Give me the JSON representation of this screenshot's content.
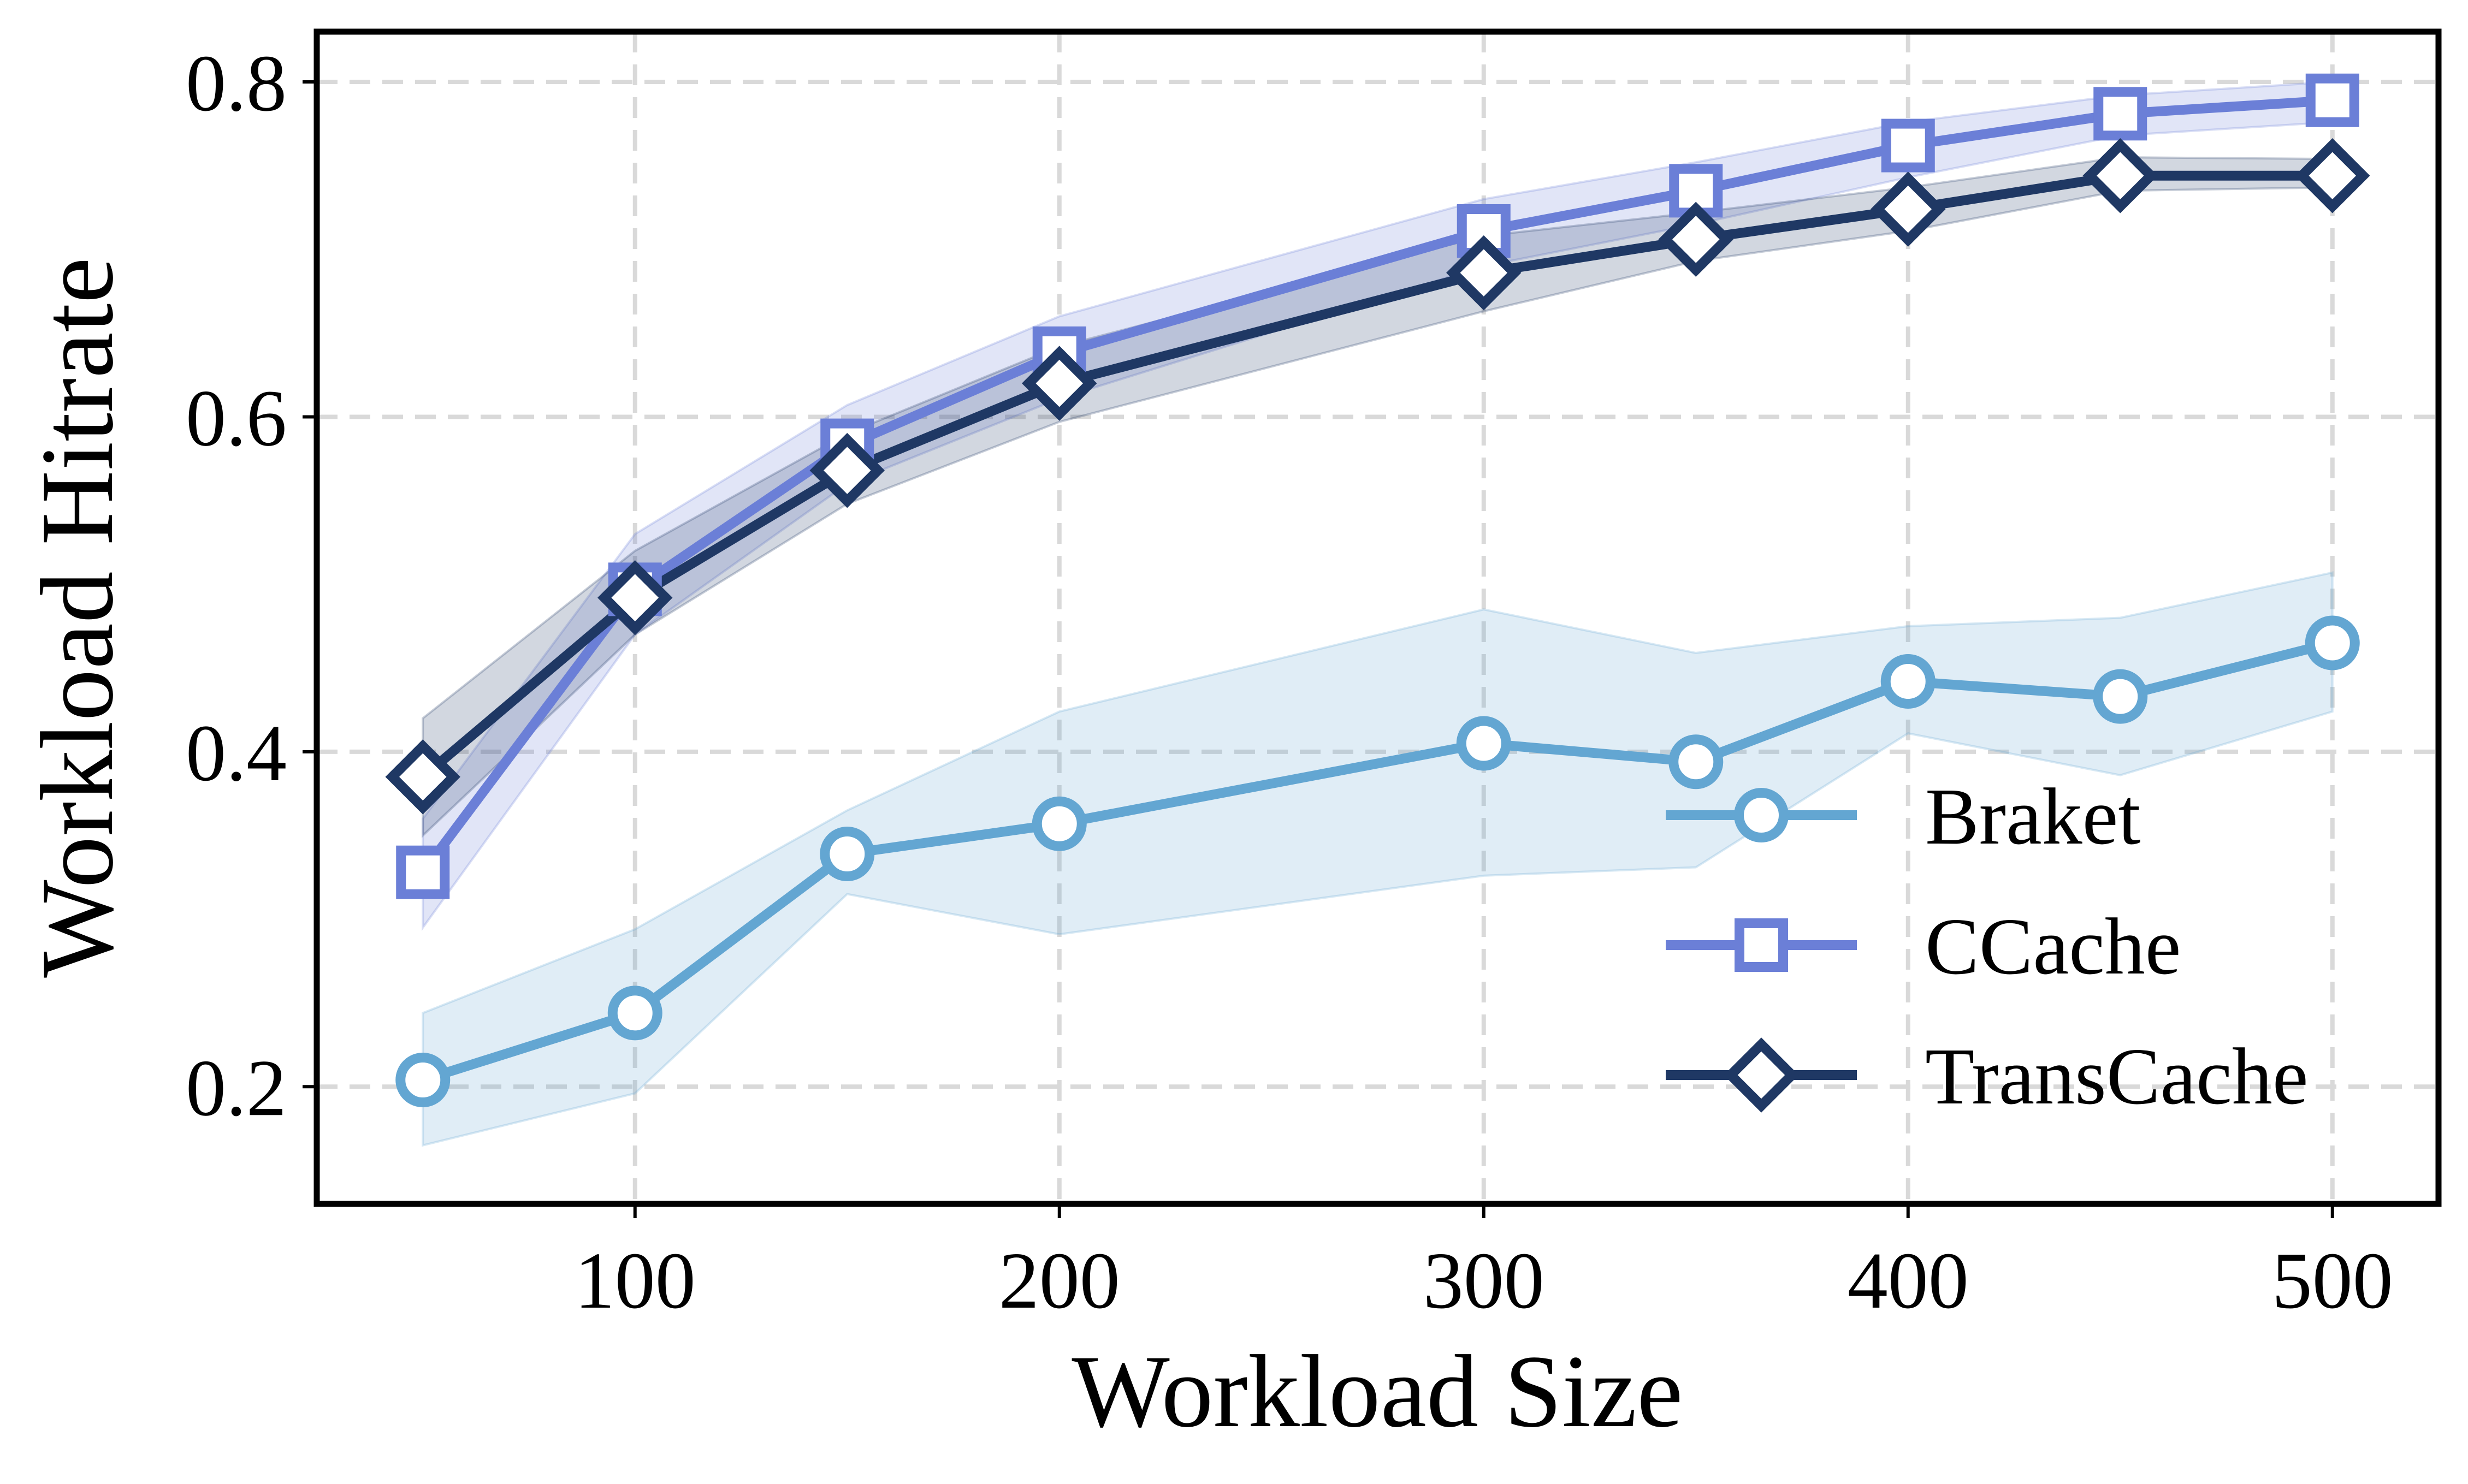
{
  "chart_data": {
    "type": "line",
    "xlabel": "Workload Size",
    "ylabel": "Workload Hitrate",
    "x": [
      50,
      100,
      150,
      200,
      300,
      350,
      400,
      450,
      500
    ],
    "xlim": [
      25,
      525
    ],
    "ylim": [
      0.13,
      0.83
    ],
    "xticks": [
      100,
      200,
      300,
      400,
      500
    ],
    "xtick_labels": [
      "100",
      "200",
      "300",
      "400",
      "500"
    ],
    "yticks": [
      0.2,
      0.4,
      0.6,
      0.8
    ],
    "ytick_labels": [
      "0.2",
      "0.4",
      "0.6",
      "0.8"
    ],
    "grid": true,
    "legend_position": "lower-right",
    "series": [
      {
        "name": "Braket",
        "marker": "circle",
        "color": "#63a6d2",
        "values": [
          0.204,
          0.244,
          0.339,
          0.357,
          0.405,
          0.394,
          0.442,
          0.433,
          0.465
        ],
        "lower": [
          0.165,
          0.196,
          0.315,
          0.291,
          0.326,
          0.331,
          0.411,
          0.386,
          0.424
        ],
        "upper": [
          0.244,
          0.294,
          0.365,
          0.424,
          0.485,
          0.459,
          0.475,
          0.48,
          0.507
        ]
      },
      {
        "name": "CCache",
        "marker": "square",
        "color": "#6b7fd7",
        "values": [
          0.328,
          0.497,
          0.583,
          0.638,
          0.711,
          0.735,
          0.762,
          0.781,
          0.789
        ],
        "lower": [
          0.295,
          0.47,
          0.56,
          0.611,
          0.69,
          0.715,
          0.743,
          0.768,
          0.776
        ],
        "upper": [
          0.36,
          0.53,
          0.607,
          0.66,
          0.73,
          0.752,
          0.776,
          0.792,
          0.8
        ]
      },
      {
        "name": "TransCache",
        "marker": "diamond",
        "color": "#1f3864",
        "values": [
          0.385,
          0.492,
          0.568,
          0.62,
          0.686,
          0.706,
          0.724,
          0.744,
          0.744
        ],
        "lower": [
          0.35,
          0.47,
          0.548,
          0.597,
          0.663,
          0.693,
          0.711,
          0.735,
          0.737
        ],
        "upper": [
          0.42,
          0.52,
          0.59,
          0.642,
          0.708,
          0.722,
          0.737,
          0.755,
          0.754
        ]
      }
    ]
  }
}
